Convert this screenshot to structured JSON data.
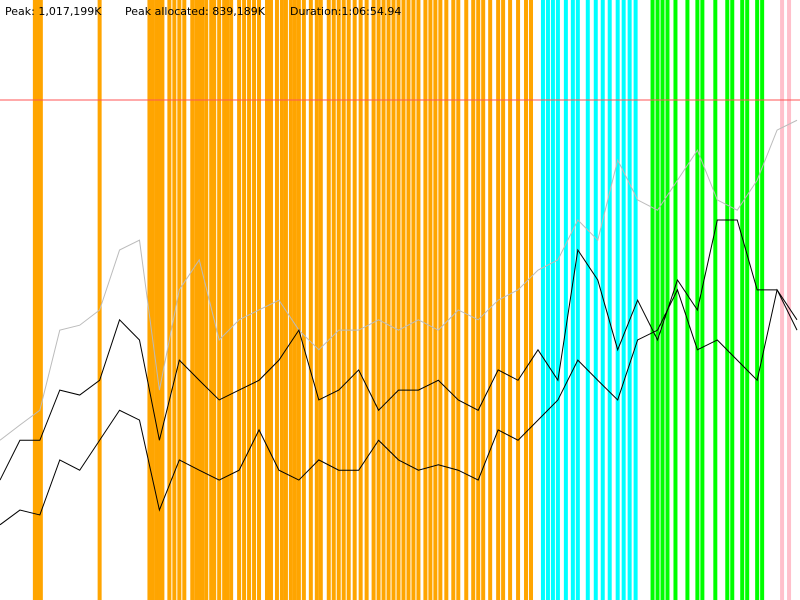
{
  "chart_data": {
    "type": "line",
    "peak_line": {
      "value": 1017199,
      "label": "Peak: 1,017,199K",
      "color": "#ff5555"
    },
    "annotations": [
      "Peak allocated: 839,189K",
      "Duration:1:06:54.94"
    ],
    "xlim": [
      0,
      4015
    ],
    "ylim": [
      0,
      1220639
    ],
    "x": [
      0,
      100,
      200,
      300,
      400,
      500,
      600,
      700,
      800,
      900,
      1000,
      1100,
      1200,
      1300,
      1400,
      1500,
      1600,
      1700,
      1800,
      1900,
      2000,
      2100,
      2200,
      2300,
      2400,
      2500,
      2600,
      2700,
      2800,
      2900,
      3000,
      3100,
      3200,
      3300,
      3400,
      3500,
      3600,
      3700,
      3800,
      3900,
      4000
    ],
    "bands": [
      {
        "color": "#ffa500",
        "x": [
          175,
          190,
          205,
          500,
          750,
          765,
          785,
          800,
          815,
          850,
          875,
          900,
          925,
          965,
          985,
          1000,
          1015,
          1035,
          1060,
          1075,
          1100,
          1125,
          1140,
          1160,
          1200,
          1225,
          1250,
          1275,
          1300,
          1340,
          1360,
          1390,
          1415,
          1435,
          1460,
          1480,
          1500,
          1525,
          1560,
          1590,
          1610,
          1650,
          1675,
          1700,
          1725,
          1750,
          1780,
          1810,
          1840,
          1875,
          1900,
          1925,
          1950,
          1975,
          2000,
          2025,
          2050,
          2075,
          2100,
          2135,
          2160,
          2185,
          2210,
          2240,
          2275,
          2300,
          2340,
          2375,
          2400,
          2425,
          2460,
          2500,
          2525,
          2560,
          2600,
          2640,
          2665
        ]
      },
      {
        "color": "#00ffff",
        "x": [
          2725,
          2750,
          2775,
          2800,
          2840,
          2875,
          2900,
          2950,
          2990,
          3025,
          3060,
          3100,
          3130,
          3160,
          3190
        ]
      },
      {
        "color": "#00ff00",
        "x": [
          3275,
          3300,
          3325,
          3350,
          3390,
          3450,
          3500,
          3525,
          3590,
          3650,
          3675,
          3725,
          3750,
          3800,
          3825
        ]
      },
      {
        "color": "#ffc0cb",
        "x": [
          3925,
          3960
        ]
      }
    ],
    "series": [
      {
        "color": "#bbbbbb",
        "values": [
          325000,
          356000,
          386000,
          549000,
          559000,
          590000,
          712000,
          732000,
          427000,
          631000,
          692000,
          529000,
          570000,
          590000,
          610000,
          549000,
          509000,
          549000,
          549000,
          570000,
          549000,
          570000,
          549000,
          590000,
          570000,
          610000,
          631000,
          671000,
          692000,
          773000,
          732000,
          895000,
          814000,
          793000,
          854000,
          915000,
          814000,
          793000,
          854000,
          956000,
          976000
        ]
      },
      {
        "color": "#000000",
        "values": [
          244000,
          325000,
          325000,
          427000,
          417000,
          447000,
          570000,
          529000,
          325000,
          488000,
          447000,
          407000,
          427000,
          447000,
          488000,
          549000,
          407000,
          427000,
          468000,
          386000,
          427000,
          427000,
          447000,
          407000,
          386000,
          468000,
          447000,
          509000,
          447000,
          712000,
          651000,
          509000,
          610000,
          529000,
          651000,
          590000,
          773000,
          773000,
          631000,
          631000,
          549000
        ]
      },
      {
        "color": "#000000",
        "values": [
          153000,
          183000,
          173000,
          285000,
          264000,
          325000,
          386000,
          366000,
          183000,
          285000,
          264000,
          244000,
          264000,
          346000,
          264000,
          244000,
          285000,
          264000,
          264000,
          325000,
          285000,
          264000,
          275000,
          264000,
          244000,
          346000,
          325000,
          366000,
          407000,
          488000,
          447000,
          407000,
          529000,
          549000,
          631000,
          509000,
          529000,
          488000,
          447000,
          631000,
          570000
        ]
      }
    ]
  }
}
